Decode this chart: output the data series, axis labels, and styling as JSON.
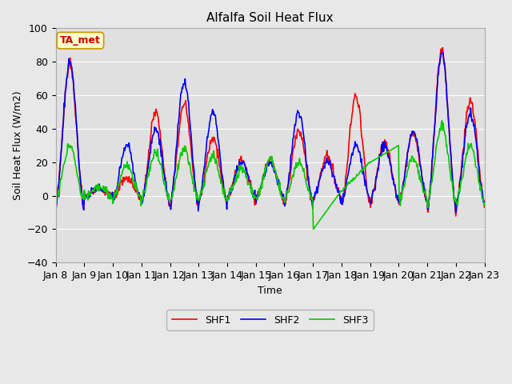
{
  "title": "Alfalfa Soil Heat Flux",
  "ylabel": "Soil Heat Flux (W/m2)",
  "xlabel": "Time",
  "ylim": [
    -40,
    100
  ],
  "xlim": [
    0,
    15
  ],
  "background_color": "#e8e8e8",
  "plot_bg_color": "#e0e0e0",
  "grid_color": "white",
  "annotation_text": "TA_met",
  "annotation_color": "#cc0000",
  "annotation_bg": "#ffffcc",
  "annotation_border": "#cc9900",
  "xtick_labels": [
    "Jan 8",
    "Jan 9",
    "Jan 10",
    "Jan 11",
    "Jan 12",
    "Jan 13",
    "Jan 14",
    "Jan 15",
    "Jan 16",
    "Jan 17",
    "Jan 18",
    "Jan 19",
    "Jan 20",
    "Jan 21",
    "Jan 22",
    "Jan 23"
  ],
  "legend_entries": [
    "SHF1",
    "SHF2",
    "SHF3"
  ],
  "legend_colors": [
    "#ff0000",
    "#0000ff",
    "#00cc00"
  ],
  "line_width": 1.2
}
